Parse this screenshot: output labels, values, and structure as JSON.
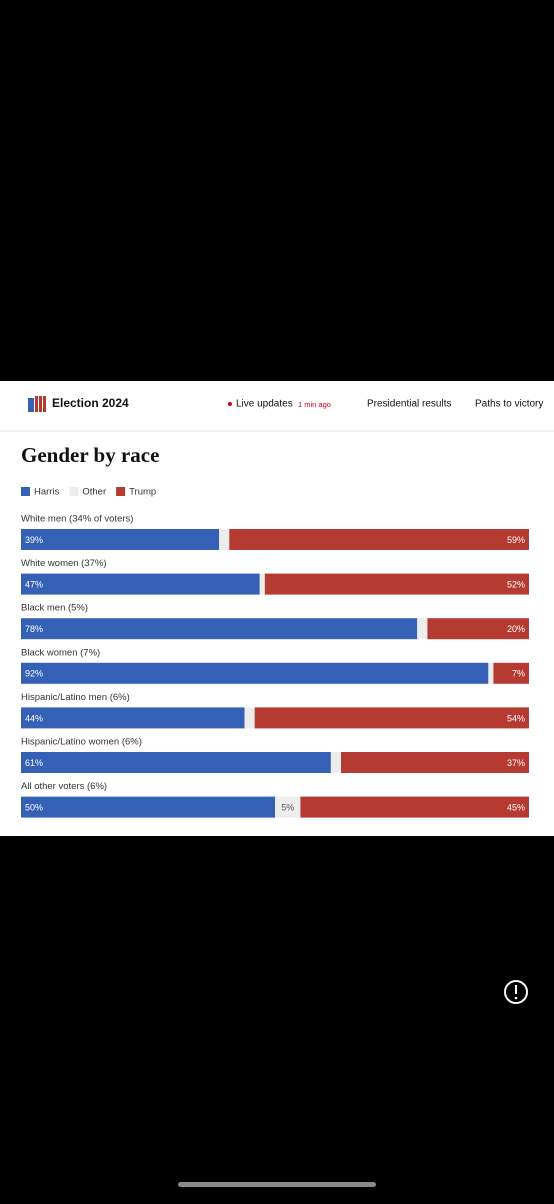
{
  "header": {
    "brand": "Election 2024",
    "live": "Live updates",
    "time": "1 min ago",
    "links": [
      "Presidential results",
      "Paths to victory"
    ]
  },
  "chart_data": {
    "type": "stacked-bar-horizontal",
    "title": "Gender by race",
    "categories": [
      "White men (34% of voters)",
      "White women (37%)",
      "Black men (5%)",
      "Black women (7%)",
      "Hispanic/Latino men (6%)",
      "Hispanic/Latino women (6%)",
      "All other voters (6%)"
    ],
    "xlim": [
      0,
      100
    ],
    "series": [
      {
        "name": "Harris",
        "color": "#3461b6",
        "values": [
          39,
          47,
          78,
          92,
          44,
          61,
          50
        ],
        "value_labels": [
          "39%",
          "47%",
          "78%",
          "92%",
          "44%",
          "61%",
          "50%"
        ]
      },
      {
        "name": "Other",
        "color": "#ededed",
        "values": [
          2,
          1,
          2,
          1,
          2,
          2,
          5
        ],
        "value_labels": [
          null,
          null,
          null,
          null,
          null,
          null,
          "5%"
        ]
      },
      {
        "name": "Trump",
        "color": "#b53a31",
        "values": [
          59,
          52,
          20,
          7,
          54,
          37,
          45
        ],
        "value_labels": [
          "59%",
          "52%",
          "20%",
          "7%",
          "54%",
          "37%",
          "45%"
        ]
      }
    ]
  }
}
